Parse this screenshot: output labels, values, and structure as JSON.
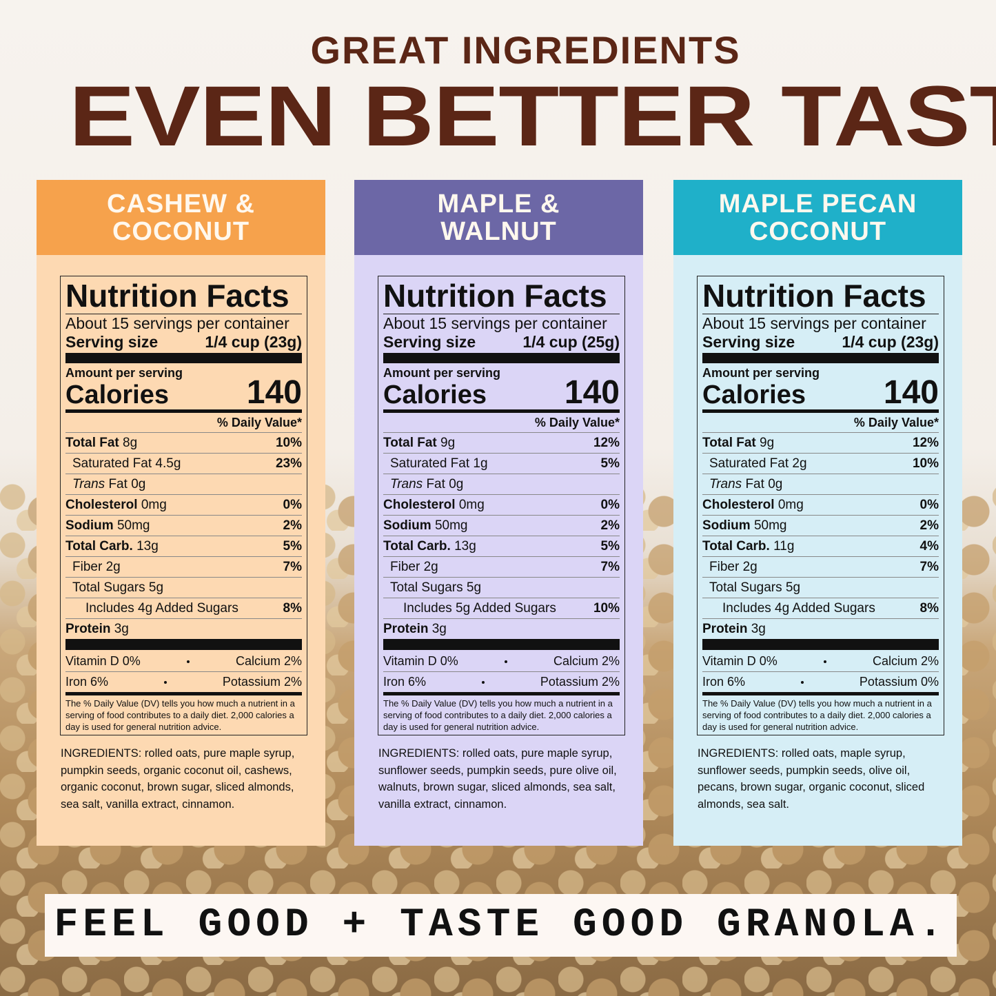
{
  "header": {
    "kicker": "GREAT INGREDIENTS",
    "title": "EVEN BETTER TASTE."
  },
  "panels": [
    {
      "name": [
        "CASHEW &",
        "COCONUT"
      ],
      "header_color": "#f6a24c",
      "body_color": "#fdd9b2",
      "label": {
        "title": "Nutrition Facts",
        "servings": "About 15 servings per container",
        "serving_size_label": "Serving size",
        "serving_size": "1/4 cup (23g)",
        "amount_per_serving": "Amount per serving",
        "calories_label": "Calories",
        "calories": 140,
        "daily_value_header": "% Daily Value*",
        "rows": [
          {
            "name": "Total Fat",
            "amount": "8g",
            "dv": "10%",
            "bold": true,
            "indent": 0
          },
          {
            "name": "Saturated Fat",
            "amount": "4.5g",
            "dv": "23%",
            "bold": false,
            "indent": 1
          },
          {
            "italic": "Trans",
            "name": "Fat",
            "amount": "0g",
            "bold": false,
            "indent": 1
          },
          {
            "name": "Cholesterol",
            "amount": "0mg",
            "dv": "0%",
            "bold": true,
            "indent": 0
          },
          {
            "name": "Sodium",
            "amount": "50mg",
            "dv": "2%",
            "bold": true,
            "indent": 0
          },
          {
            "name": "Total Carb.",
            "amount": "13g",
            "dv": "5%",
            "bold": true,
            "indent": 0
          },
          {
            "name": "Fiber",
            "amount": "2g",
            "dv": "7%",
            "bold": false,
            "indent": 1
          },
          {
            "name": "Total Sugars",
            "amount": "5g",
            "bold": false,
            "indent": 1
          },
          {
            "name": "Includes 4g Added Sugars",
            "dv": "8%",
            "bold": false,
            "indent": 2
          },
          {
            "name": "Protein",
            "amount": "3g",
            "bold": true,
            "indent": 0
          }
        ],
        "vitamins": [
          [
            "Vitamin D 0%",
            "Calcium 2%"
          ],
          [
            "Iron 6%",
            "Potassium 2%"
          ]
        ],
        "footnote": "The % Daily Value (DV) tells you how much a nutrient in a serving of food contributes to a daily diet. 2,000 calories a day is used for general nutrition advice."
      },
      "ingredients": "INGREDIENTS: rolled oats, pure maple syrup, pumpkin seeds, organic coconut oil, cashews, organic coconut, brown sugar, sliced almonds, sea salt, vanilla extract, cinnamon."
    },
    {
      "name": [
        "MAPLE &",
        "WALNUT"
      ],
      "header_color": "#6c67a6",
      "body_color": "#dbd5f6",
      "label": {
        "title": "Nutrition Facts",
        "servings": "About 15 servings per container",
        "serving_size_label": "Serving size",
        "serving_size": "1/4 cup (25g)",
        "amount_per_serving": "Amount per serving",
        "calories_label": "Calories",
        "calories": 140,
        "daily_value_header": "% Daily Value*",
        "rows": [
          {
            "name": "Total Fat",
            "amount": "9g",
            "dv": "12%",
            "bold": true,
            "indent": 0
          },
          {
            "name": "Saturated Fat",
            "amount": "1g",
            "dv": "5%",
            "bold": false,
            "indent": 1
          },
          {
            "italic": "Trans",
            "name": "Fat",
            "amount": "0g",
            "bold": false,
            "indent": 1
          },
          {
            "name": "Cholesterol",
            "amount": "0mg",
            "dv": "0%",
            "bold": true,
            "indent": 0
          },
          {
            "name": "Sodium",
            "amount": "50mg",
            "dv": "2%",
            "bold": true,
            "indent": 0
          },
          {
            "name": "Total Carb.",
            "amount": "13g",
            "dv": "5%",
            "bold": true,
            "indent": 0
          },
          {
            "name": "Fiber",
            "amount": "2g",
            "dv": "7%",
            "bold": false,
            "indent": 1
          },
          {
            "name": "Total Sugars",
            "amount": "5g",
            "bold": false,
            "indent": 1
          },
          {
            "name": "Includes 5g Added Sugars",
            "dv": "10%",
            "bold": false,
            "indent": 2
          },
          {
            "name": "Protein",
            "amount": "3g",
            "bold": true,
            "indent": 0
          }
        ],
        "vitamins": [
          [
            "Vitamin D 0%",
            "Calcium 2%"
          ],
          [
            "Iron 6%",
            "Potassium 2%"
          ]
        ],
        "footnote": "The % Daily Value (DV) tells you how much a nutrient in a serving of food contributes to a daily diet. 2,000 calories a day is used for general nutrition advice."
      },
      "ingredients": "INGREDIENTS: rolled oats, pure maple syrup, sunflower seeds, pumpkin seeds, pure olive oil, walnuts, brown sugar, sliced almonds, sea salt, vanilla extract, cinnamon."
    },
    {
      "name": [
        "MAPLE PECAN",
        "COCONUT"
      ],
      "header_color": "#1fb0c9",
      "body_color": "#d6eef6",
      "label": {
        "title": "Nutrition Facts",
        "servings": "About 15 servings per container",
        "serving_size_label": "Serving size",
        "serving_size": "1/4 cup (23g)",
        "amount_per_serving": "Amount per serving",
        "calories_label": "Calories",
        "calories": 140,
        "daily_value_header": "% Daily Value*",
        "rows": [
          {
            "name": "Total Fat",
            "amount": "9g",
            "dv": "12%",
            "bold": true,
            "indent": 0
          },
          {
            "name": "Saturated Fat",
            "amount": "2g",
            "dv": "10%",
            "bold": false,
            "indent": 1
          },
          {
            "italic": "Trans",
            "name": "Fat",
            "amount": "0g",
            "bold": false,
            "indent": 1
          },
          {
            "name": "Cholesterol",
            "amount": "0mg",
            "dv": "0%",
            "bold": true,
            "indent": 0
          },
          {
            "name": "Sodium",
            "amount": "50mg",
            "dv": "2%",
            "bold": true,
            "indent": 0
          },
          {
            "name": "Total Carb.",
            "amount": "11g",
            "dv": "4%",
            "bold": true,
            "indent": 0
          },
          {
            "name": "Fiber",
            "amount": "2g",
            "dv": "7%",
            "bold": false,
            "indent": 1
          },
          {
            "name": "Total Sugars",
            "amount": "5g",
            "bold": false,
            "indent": 1
          },
          {
            "name": "Includes 4g Added Sugars",
            "dv": "8%",
            "bold": false,
            "indent": 2
          },
          {
            "name": "Protein",
            "amount": "3g",
            "bold": true,
            "indent": 0
          }
        ],
        "vitamins": [
          [
            "Vitamin D 0%",
            "Calcium 2%"
          ],
          [
            "Iron 6%",
            "Potassium 0%"
          ]
        ],
        "footnote": "The % Daily Value (DV) tells you how much a nutrient in a serving of food contributes to a daily diet. 2,000 calories a day is used for general nutrition advice."
      },
      "ingredients": "INGREDIENTS: rolled oats, maple syrup, sunflower seeds, pumpkin seeds, olive oil, pecans, brown sugar, organic coconut, sliced almonds, sea salt."
    }
  ],
  "tagline": "FEEL GOOD + TASTE GOOD GRANOLA."
}
